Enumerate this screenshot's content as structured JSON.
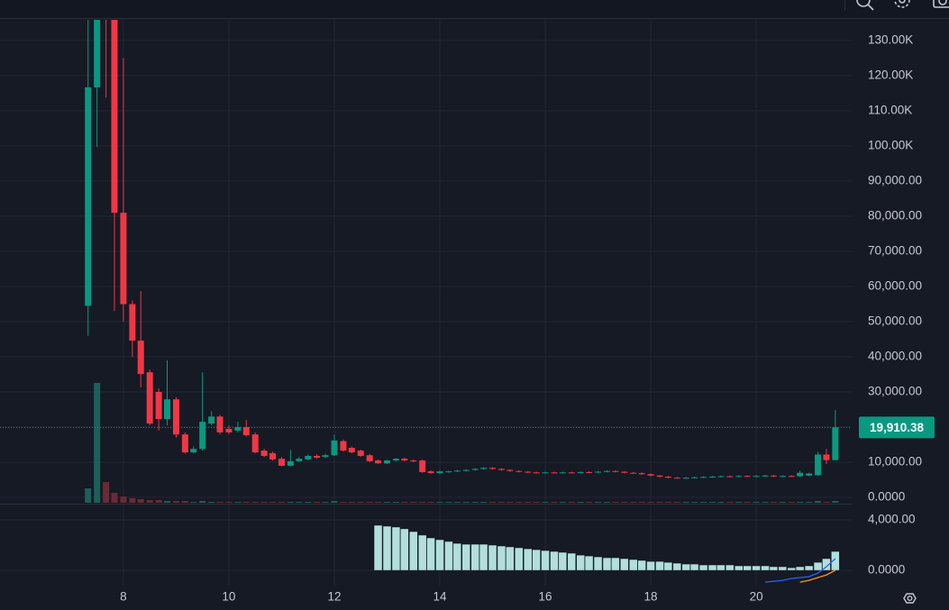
{
  "chart_data": [
    {
      "type": "candlestick",
      "x": [
        7.33,
        7.5,
        7.67,
        7.83,
        8,
        8.17,
        8.33,
        8.5,
        8.67,
        8.83,
        9,
        9.17,
        9.33,
        9.5,
        9.67,
        9.83,
        10,
        10.17,
        10.33,
        10.5,
        10.67,
        10.83,
        11,
        11.17,
        11.33,
        11.5,
        11.67,
        11.83,
        12,
        12.17,
        12.33,
        12.5,
        12.67,
        12.83,
        13,
        13.17,
        13.33,
        13.5,
        13.67,
        13.83,
        14,
        14.17,
        14.33,
        14.5,
        14.67,
        14.83,
        15,
        15.17,
        15.33,
        15.5,
        15.67,
        15.83,
        16,
        16.17,
        16.33,
        16.5,
        16.67,
        16.83,
        17,
        17.17,
        17.33,
        17.5,
        17.67,
        17.83,
        18,
        18.17,
        18.33,
        18.5,
        18.67,
        18.83,
        19,
        19.17,
        19.33,
        19.5,
        19.67,
        19.83,
        20,
        20.17,
        20.33,
        20.5,
        20.67,
        20.83,
        21,
        21.17,
        21.33,
        21.5
      ],
      "open": [
        54500,
        116700,
        138000,
        136000,
        81000,
        55000,
        44600,
        35600,
        30000,
        22300,
        27900,
        17900,
        12800,
        13800,
        21000,
        23000,
        19500,
        19000,
        20000,
        17900,
        13300,
        12600,
        11000,
        9000,
        10300,
        10800,
        11800,
        11500,
        12000,
        16000,
        14100,
        13300,
        12000,
        10500,
        9700,
        10500,
        11000,
        10500,
        10500,
        7400,
        6900,
        7200,
        7400,
        7600,
        7800,
        8100,
        8400,
        8100,
        7800,
        7500,
        7300,
        7100,
        7000,
        7100,
        7000,
        7100,
        7000,
        7200,
        7100,
        7300,
        7500,
        7300,
        7000,
        6900,
        6600,
        6200,
        5900,
        5600,
        5500,
        5600,
        5700,
        5800,
        5900,
        6000,
        5900,
        6100,
        6000,
        6100,
        6200,
        6000,
        6100,
        6000,
        6200,
        6300,
        12200,
        10600
      ],
      "high": [
        136000,
        140000,
        140000,
        140000,
        125000,
        56000,
        58700,
        36400,
        31000,
        39000,
        28500,
        18500,
        14500,
        35600,
        24500,
        23500,
        20500,
        21500,
        22000,
        18500,
        13800,
        13000,
        11500,
        13500,
        11500,
        12200,
        12300,
        12400,
        17900,
        16500,
        14500,
        13600,
        12300,
        10800,
        10700,
        11200,
        11300,
        10800,
        10800,
        7700,
        7600,
        7600,
        7800,
        8000,
        8300,
        8600,
        8600,
        8300,
        8000,
        7700,
        7500,
        7300,
        7300,
        7300,
        7300,
        7300,
        7400,
        7400,
        7500,
        7700,
        7700,
        7500,
        7200,
        7100,
        6800,
        6400,
        6100,
        5800,
        5800,
        5900,
        6000,
        6100,
        6200,
        6200,
        6300,
        6300,
        6300,
        6400,
        6400,
        6300,
        6300,
        7600,
        7000,
        13000,
        13800,
        24900
      ],
      "low": [
        46000,
        99700,
        113800,
        53000,
        50000,
        40000,
        31300,
        20500,
        19000,
        20500,
        17000,
        12500,
        12500,
        13300,
        20500,
        18000,
        18000,
        18500,
        17300,
        12500,
        11500,
        10500,
        8800,
        8800,
        10000,
        10500,
        11000,
        11200,
        11800,
        13000,
        12500,
        11500,
        10000,
        9500,
        9500,
        10300,
        10300,
        10000,
        7000,
        6700,
        6700,
        7000,
        7200,
        7400,
        7600,
        7900,
        7900,
        7600,
        7300,
        7100,
        6900,
        6800,
        6800,
        6800,
        6800,
        6800,
        6800,
        6900,
        6900,
        7100,
        7100,
        6800,
        6700,
        6400,
        6000,
        5700,
        5400,
        5300,
        5300,
        5400,
        5500,
        5600,
        5700,
        5700,
        5700,
        5800,
        5800,
        5900,
        5800,
        5800,
        5800,
        5800,
        6000,
        6100,
        9500,
        10600
      ],
      "close": [
        116700,
        136000,
        136000,
        81000,
        55000,
        44600,
        35100,
        21000,
        22300,
        27900,
        17900,
        12800,
        13800,
        21500,
        23000,
        18500,
        18500,
        20000,
        17700,
        12800,
        11800,
        10800,
        9000,
        10300,
        11000,
        11800,
        11300,
        12000,
        16200,
        13300,
        12800,
        11800,
        10300,
        9700,
        10500,
        11000,
        10500,
        10300,
        7200,
        6900,
        7400,
        7400,
        7600,
        7800,
        8100,
        8400,
        8100,
        7800,
        7500,
        7300,
        7100,
        7000,
        7100,
        7000,
        7100,
        7000,
        7200,
        7100,
        7300,
        7500,
        7300,
        7000,
        6900,
        6600,
        6200,
        5900,
        5600,
        5500,
        5600,
        5700,
        5800,
        5900,
        6000,
        5900,
        6100,
        6000,
        6100,
        6200,
        6000,
        6100,
        6000,
        7000,
        6800,
        12200,
        10600,
        19910.38
      ],
      "volume": [
        16,
        133,
        23,
        11,
        7,
        5,
        4,
        3,
        3,
        2,
        2,
        2,
        1,
        2,
        1,
        1,
        1,
        1,
        1,
        1,
        1,
        1,
        1,
        1,
        1,
        1,
        1,
        1,
        2,
        1,
        1,
        1,
        1,
        1,
        1,
        1,
        1,
        1,
        1,
        1,
        1,
        1,
        1,
        1,
        1,
        1,
        1,
        1,
        1,
        1,
        1,
        1,
        1,
        1,
        1,
        1,
        1,
        1,
        1,
        1,
        1,
        1,
        1,
        1,
        1,
        1,
        1,
        1,
        1,
        1,
        1,
        1,
        1,
        1,
        1,
        1,
        1,
        1,
        1,
        1,
        1,
        1,
        1,
        2,
        1,
        2
      ],
      "up_color": "#089981",
      "down_color": "#f23645",
      "volume_up_color": "#1d5f59",
      "volume_down_color": "#6b2a35",
      "last_price": {
        "value": 19910.38,
        "label": "19,910.38"
      },
      "xlim": [
        5.66,
        21.81
      ],
      "xticks": [
        8,
        10,
        12,
        14,
        16,
        18,
        20
      ],
      "ylim": [
        -1540,
        135900
      ],
      "yticks": [
        {
          "value": 0,
          "label": "0.0000"
        },
        {
          "value": 10000,
          "label": "10,000.00"
        },
        {
          "value": 20000,
          "label": "20,000.00"
        },
        {
          "value": 30000,
          "label": "30,000.00"
        },
        {
          "value": 40000,
          "label": "40,000.00"
        },
        {
          "value": 50000,
          "label": "50,000.00"
        },
        {
          "value": 60000,
          "label": "60,000.00"
        },
        {
          "value": 70000,
          "label": "70,000.00"
        },
        {
          "value": 80000,
          "label": "80,000.00"
        },
        {
          "value": 90000,
          "label": "90,000.00"
        },
        {
          "value": 100000,
          "label": "100.00K"
        },
        {
          "value": 110000,
          "label": "110.00K"
        },
        {
          "value": 120000,
          "label": "120.00K"
        },
        {
          "value": 130000,
          "label": "130.00K"
        }
      ],
      "grid": true
    },
    {
      "type": "indicator",
      "series": [
        {
          "style": "bar",
          "color": "#b2dfdb",
          "values": [
            null,
            null,
            null,
            null,
            null,
            null,
            null,
            null,
            null,
            null,
            null,
            null,
            null,
            null,
            null,
            null,
            null,
            null,
            null,
            null,
            null,
            null,
            null,
            null,
            null,
            null,
            null,
            null,
            null,
            null,
            null,
            null,
            null,
            3570,
            3500,
            3430,
            3290,
            3070,
            2790,
            2570,
            2430,
            2290,
            2140,
            2070,
            2070,
            2070,
            2000,
            1930,
            1860,
            1790,
            1710,
            1640,
            1570,
            1500,
            1430,
            1360,
            1210,
            1140,
            1070,
            1000,
            1000,
            930,
            860,
            790,
            710,
            710,
            640,
            570,
            500,
            500,
            430,
            430,
            430,
            430,
            360,
            360,
            360,
            360,
            290,
            290,
            210,
            290,
            360,
            640,
            930,
            1500
          ]
        },
        {
          "style": "line",
          "color": "#2962ff",
          "values": [
            null,
            null,
            null,
            null,
            null,
            null,
            null,
            null,
            null,
            null,
            null,
            null,
            null,
            null,
            null,
            null,
            null,
            null,
            null,
            null,
            null,
            null,
            null,
            null,
            null,
            null,
            null,
            null,
            null,
            null,
            null,
            null,
            null,
            null,
            null,
            null,
            null,
            null,
            null,
            null,
            null,
            null,
            null,
            null,
            null,
            null,
            null,
            null,
            null,
            null,
            null,
            null,
            null,
            null,
            null,
            null,
            null,
            null,
            null,
            null,
            null,
            null,
            null,
            null,
            null,
            null,
            null,
            null,
            null,
            null,
            null,
            null,
            null,
            null,
            null,
            null,
            null,
            -930,
            -860,
            -790,
            -640,
            -570,
            -500,
            -210,
            290,
            930
          ]
        },
        {
          "style": "line",
          "color": "#ff9800",
          "values": [
            null,
            null,
            null,
            null,
            null,
            null,
            null,
            null,
            null,
            null,
            null,
            null,
            null,
            null,
            null,
            null,
            null,
            null,
            null,
            null,
            null,
            null,
            null,
            null,
            null,
            null,
            null,
            null,
            null,
            null,
            null,
            null,
            null,
            null,
            null,
            null,
            null,
            null,
            null,
            null,
            null,
            null,
            null,
            null,
            null,
            null,
            null,
            null,
            null,
            null,
            null,
            null,
            null,
            null,
            null,
            null,
            null,
            null,
            null,
            null,
            null,
            null,
            null,
            null,
            null,
            null,
            null,
            null,
            null,
            null,
            null,
            null,
            null,
            null,
            null,
            null,
            null,
            null,
            null,
            null,
            null,
            -930,
            -790,
            -570,
            -360,
            0
          ]
        }
      ],
      "ylim": [
        -1210,
        5210
      ],
      "yticks": [
        {
          "value": 0,
          "label": "0.0000"
        },
        {
          "value": 4000,
          "label": "4,000.00"
        }
      ],
      "grid": true
    }
  ]
}
